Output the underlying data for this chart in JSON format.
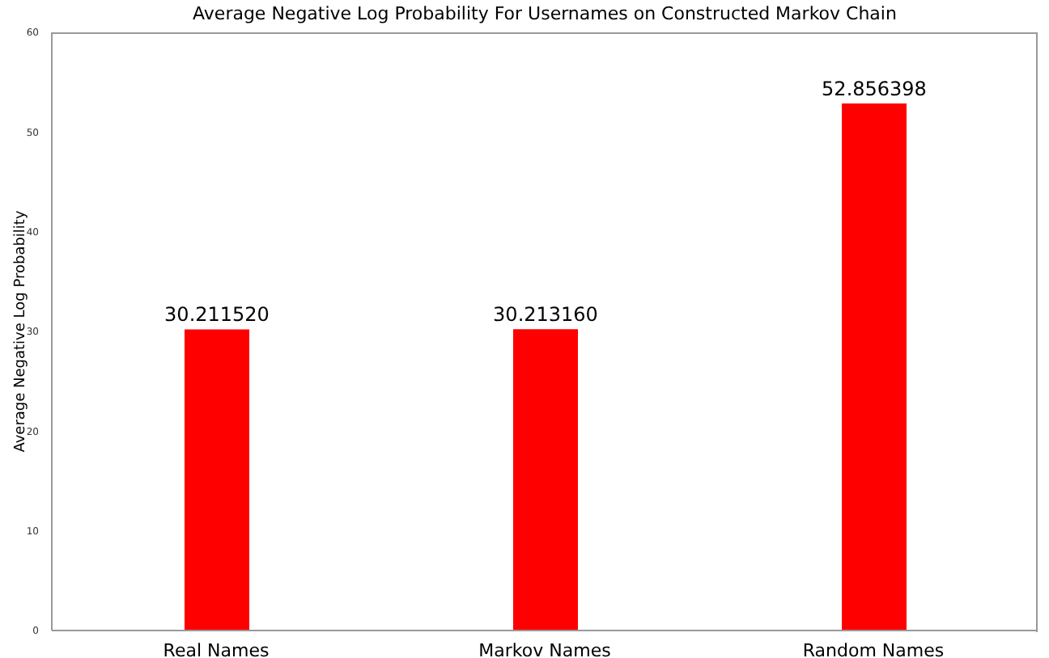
{
  "chart_data": {
    "type": "bar",
    "title": "Average Negative Log Probability For Usernames on Constructed Markov Chain",
    "ylabel": "Average Negative Log Probability",
    "categories": [
      "Real Names",
      "Markov Names",
      "Random Names"
    ],
    "values": [
      30.21152,
      30.21316,
      52.856398
    ],
    "value_labels": [
      "30.211520",
      "30.213160",
      "52.856398"
    ],
    "color": "#ff0000",
    "ylim": [
      0,
      60
    ],
    "yticks": [
      0,
      10,
      20,
      30,
      40,
      50,
      60
    ],
    "grid": false,
    "legend": false
  }
}
